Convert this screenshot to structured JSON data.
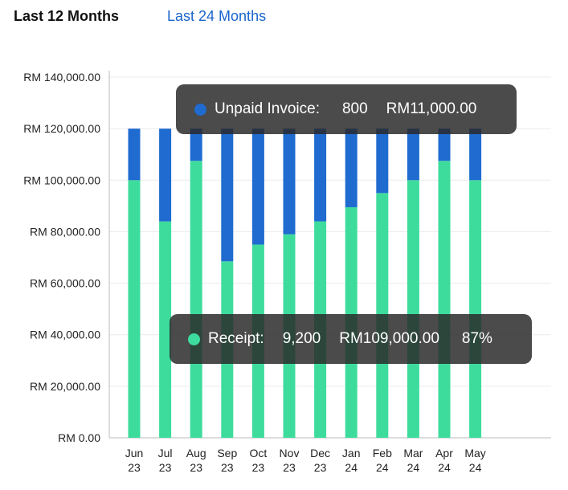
{
  "tabs": {
    "active_label": "Last 12 Months",
    "inactive_label": "Last 24 Months"
  },
  "chart_data": {
    "type": "bar",
    "stacked": true,
    "categories": [
      [
        "Jun",
        "23"
      ],
      [
        "Jul",
        "23"
      ],
      [
        "Aug",
        "23"
      ],
      [
        "Sep",
        "23"
      ],
      [
        "Oct",
        "23"
      ],
      [
        "Nov",
        "23"
      ],
      [
        "Dec",
        "23"
      ],
      [
        "Jan",
        "24"
      ],
      [
        "Feb",
        "24"
      ],
      [
        "Mar",
        "24"
      ],
      [
        "Apr",
        "24"
      ],
      [
        "May",
        "24"
      ]
    ],
    "series": [
      {
        "name": "Receipt",
        "color": "#3ddc9d",
        "values": [
          100000,
          84000,
          107500,
          68500,
          75000,
          79000,
          84000,
          89500,
          95000,
          100000,
          107500,
          100000
        ]
      },
      {
        "name": "Unpaid Invoice",
        "color": "#1f6bd0",
        "values": [
          20000,
          36000,
          12500,
          51500,
          45000,
          41000,
          36000,
          30500,
          25000,
          20000,
          12500,
          20000
        ]
      }
    ],
    "y_ticks": [
      "RM 0.00",
      "RM 20,000.00",
      "RM 40,000.00",
      "RM 60,000.00",
      "RM 80,000.00",
      "RM 100,000.00",
      "RM 120,000.00",
      "RM 140,000.00"
    ],
    "ylim": [
      0,
      140000
    ],
    "grid": true,
    "tooltips": {
      "unpaid": {
        "label": "Unpaid Invoice:",
        "count": "800",
        "amount": "RM11,000.00",
        "color": "#1f6bd0"
      },
      "receipt": {
        "label": "Receipt:",
        "count": "9,200",
        "amount": "RM109,000.00",
        "percent": "87%",
        "color": "#3ddc9d"
      }
    }
  }
}
